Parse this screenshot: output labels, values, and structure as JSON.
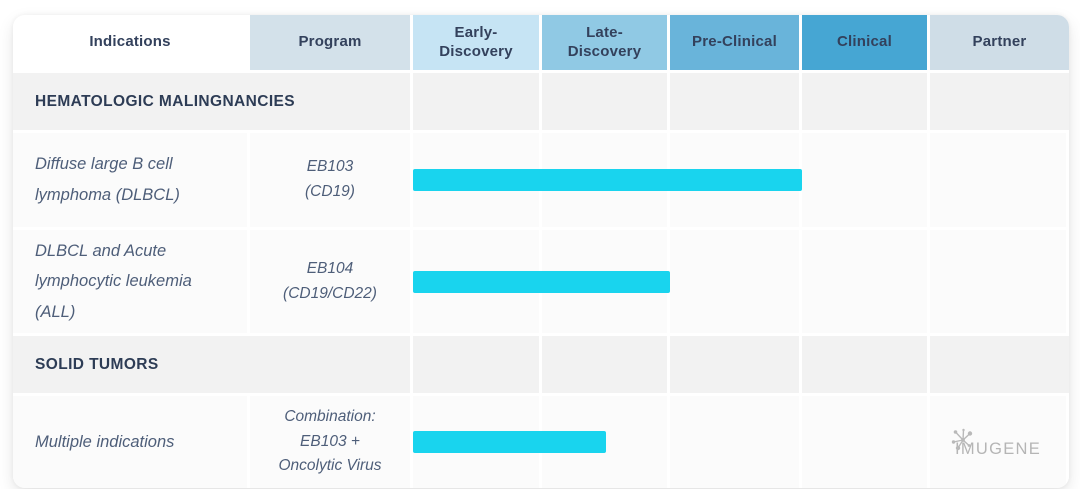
{
  "table": {
    "columns": [
      {
        "id": "indications",
        "label": "Indications",
        "bg": "#ffffff"
      },
      {
        "id": "program",
        "label": "Program",
        "bg": "#d3e1ea"
      },
      {
        "id": "early_discovery",
        "label": "Early-\nDiscovery",
        "bg": "#c6e4f4"
      },
      {
        "id": "late_discovery",
        "label": "Late-\nDiscovery",
        "bg": "#90c9e4"
      },
      {
        "id": "pre_clinical",
        "label": "Pre-Clinical",
        "bg": "#69b4da"
      },
      {
        "id": "clinical",
        "label": "Clinical",
        "bg": "#46a6d3"
      },
      {
        "id": "partner",
        "label": "Partner",
        "bg": "#cfdde7"
      }
    ],
    "sections": {
      "hematologic": {
        "label": "HEMATOLOGIC MALINGNANCIES"
      },
      "solid_tumors": {
        "label": "SOLID TUMORS"
      }
    },
    "rows": {
      "eb103": {
        "indication": "Diffuse large B cell\nlymphoma (DLBCL)",
        "program": "EB103\n(CD19)",
        "stages_covered": 3
      },
      "eb104": {
        "indication": "DLBCL and Acute\nlymphocytic leukemia\n(ALL)",
        "program": "EB104\n(CD19/CD22)",
        "stages_covered": 2
      },
      "combination": {
        "indication": "Multiple indications",
        "program": "Combination:\nEB103 +\nOncolytic Virus",
        "stages_covered": 1.5,
        "partner": "IMUGENE"
      }
    },
    "bar_color": "#19d4ee"
  },
  "chart_data": {
    "type": "bar",
    "orientation": "horizontal",
    "title": "",
    "stages": [
      "Early-Discovery",
      "Late-Discovery",
      "Pre-Clinical",
      "Clinical",
      "Partner"
    ],
    "bar_color": "#19d4ee",
    "sections": [
      {
        "name": "HEMATOLOGIC MALINGNANCIES",
        "programs": [
          {
            "indication": "Diffuse large B cell lymphoma (DLBCL)",
            "program": "EB103 (CD19)",
            "stages_completed": 3,
            "furthest_stage": "Pre-Clinical"
          },
          {
            "indication": "DLBCL and Acute lymphocytic leukemia (ALL)",
            "program": "EB104 (CD19/CD22)",
            "stages_completed": 2,
            "furthest_stage": "Late-Discovery"
          }
        ]
      },
      {
        "name": "SOLID TUMORS",
        "programs": [
          {
            "indication": "Multiple indications",
            "program": "Combination: EB103 + Oncolytic Virus",
            "stages_completed": 1.5,
            "furthest_stage": "mid Late-Discovery",
            "partner": "IMUGENE"
          }
        ]
      }
    ]
  }
}
